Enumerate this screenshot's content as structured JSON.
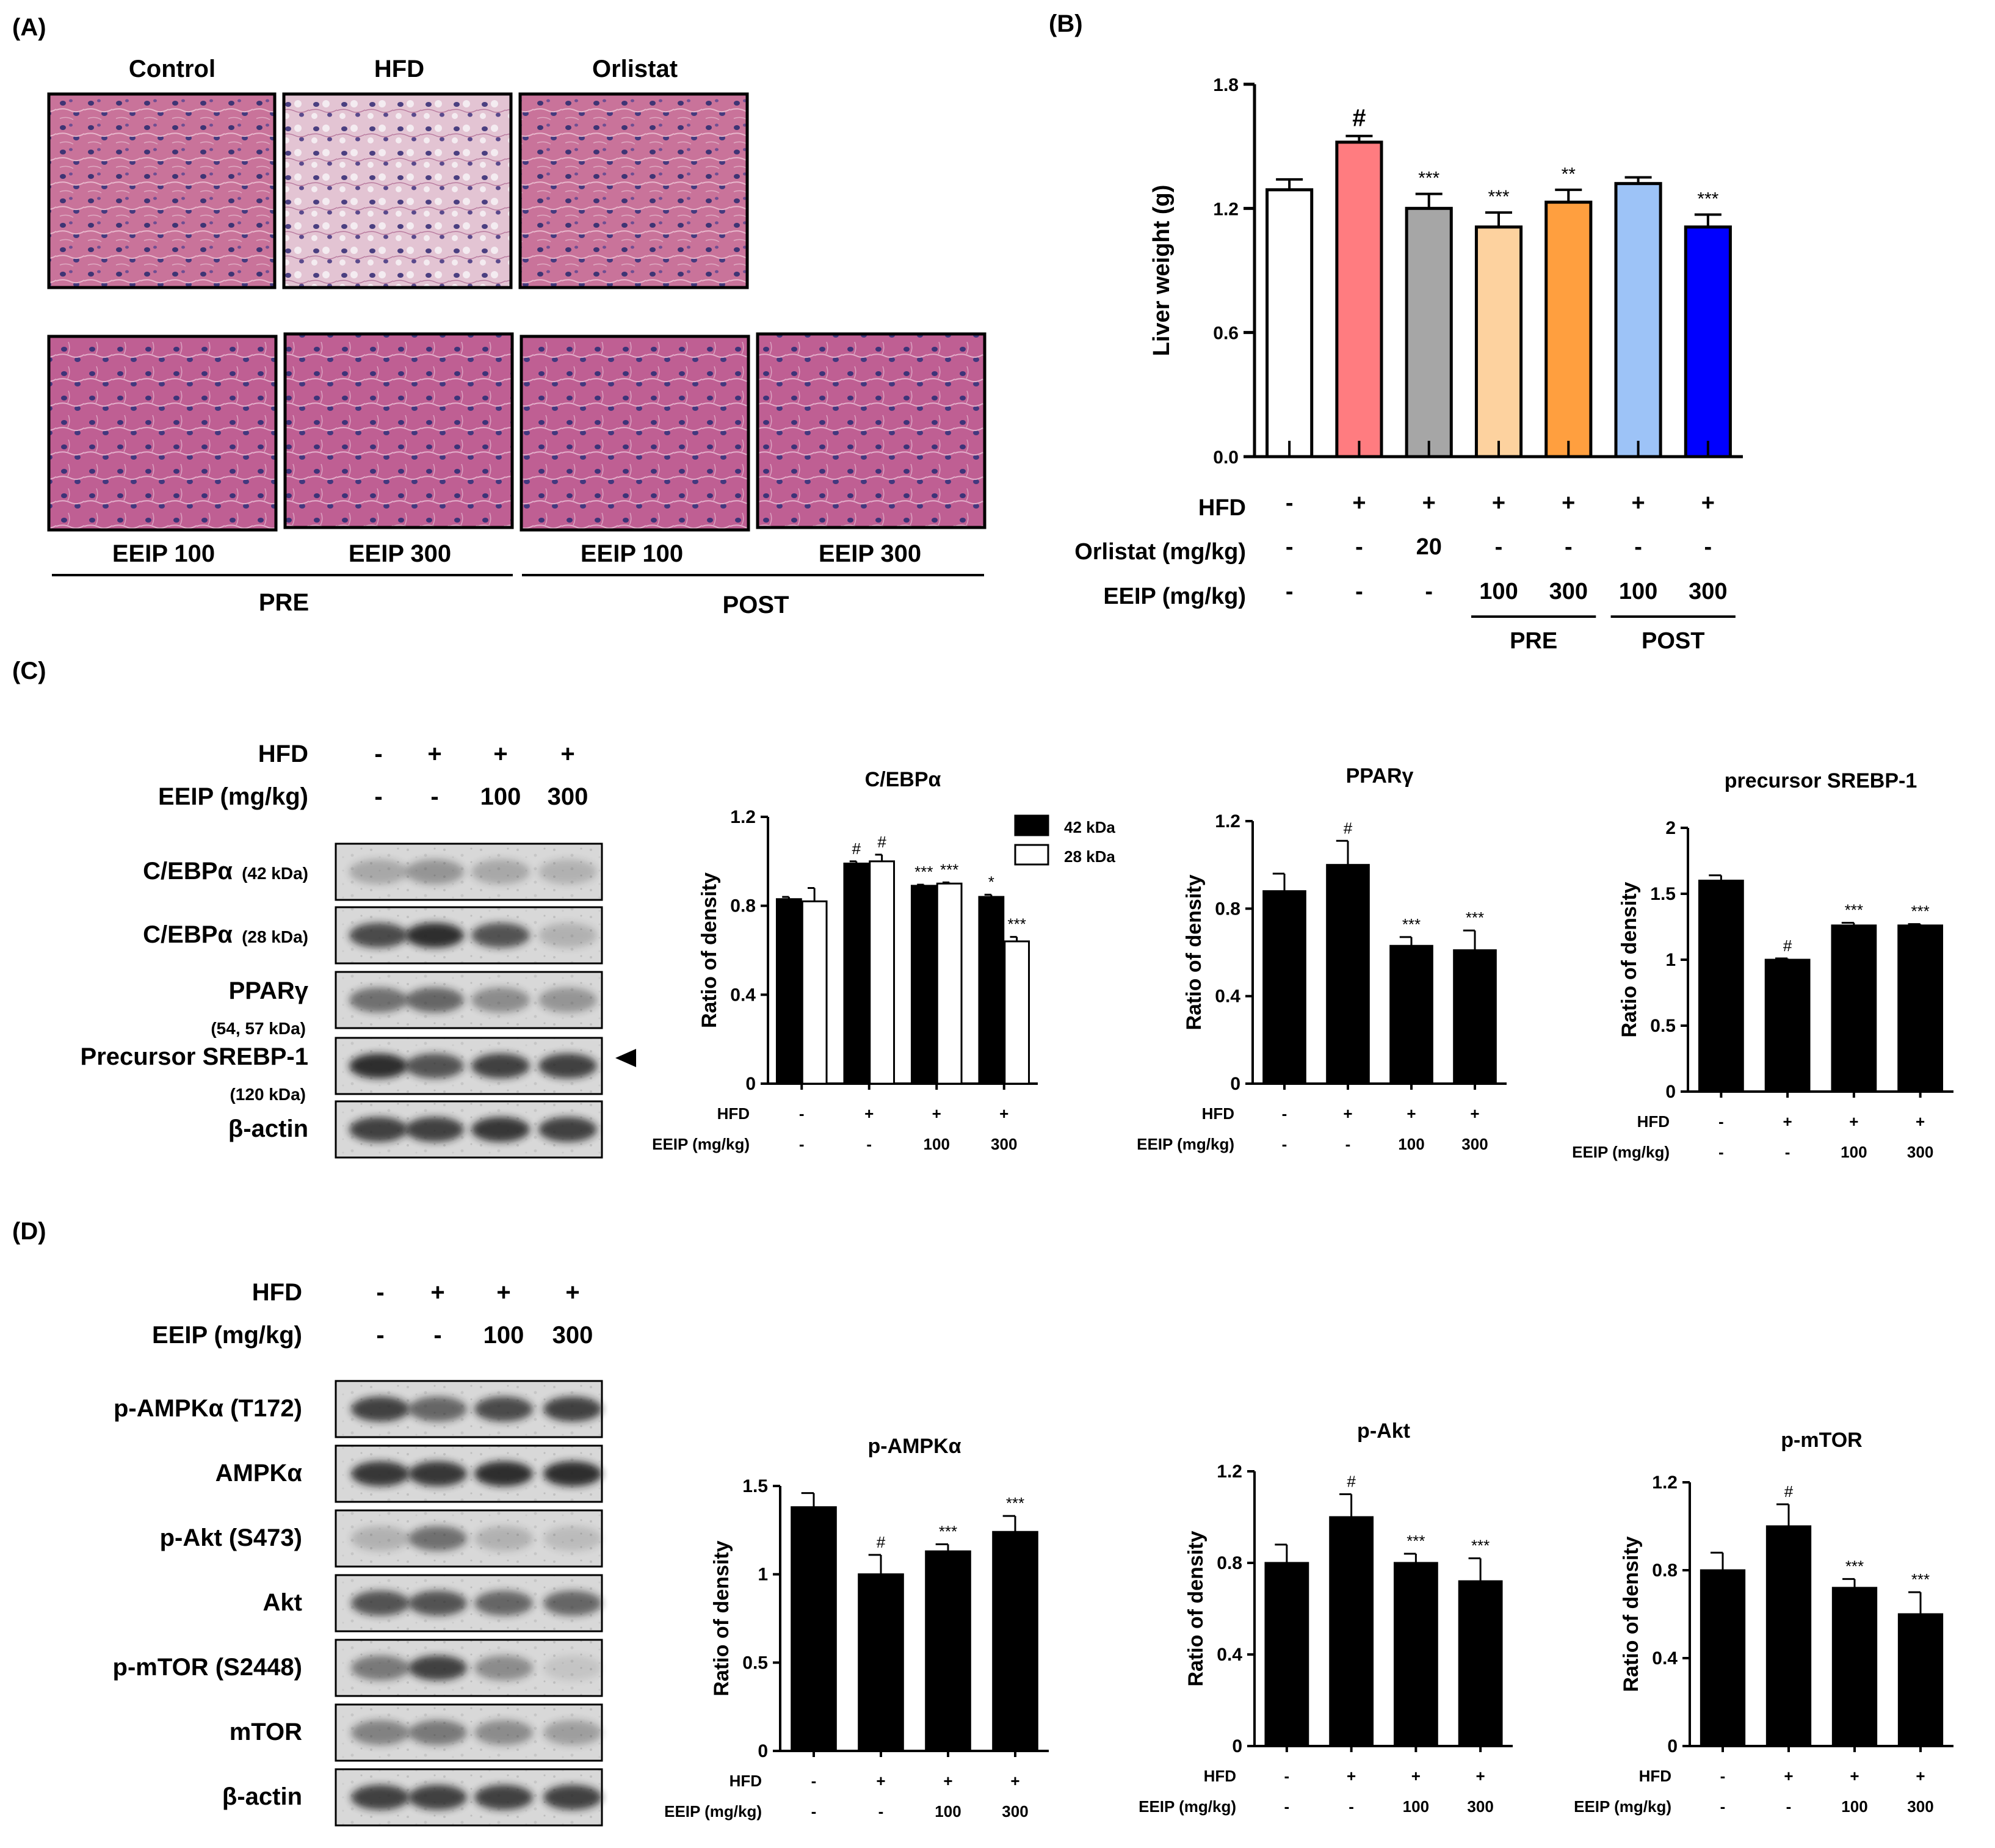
{
  "panels": {
    "A": {
      "label": "(A)",
      "top_titles": [
        "Control",
        "HFD",
        "Orlistat"
      ],
      "bottom_labels": [
        "EEIP 100",
        "EEIP 300",
        "EEIP 100",
        "EEIP 300"
      ],
      "groups": [
        "PRE",
        "POST"
      ]
    },
    "B": {
      "label": "(B)"
    },
    "C": {
      "label": "(C)"
    },
    "D": {
      "label": "(D)"
    }
  },
  "blot_c": {
    "hfd_label": "HFD",
    "eeip_label": "EEIP (mg/kg)",
    "hfd": [
      "-",
      "+",
      "+",
      "+"
    ],
    "eeip": [
      "-",
      "-",
      "100",
      "300"
    ],
    "rows": [
      {
        "name": "C/EBPα",
        "sub": "(42 kDa)"
      },
      {
        "name": "C/EBPα",
        "sub": "(28 kDa)"
      },
      {
        "name": "PPARγ",
        "sub": "(54, 57 kDa)"
      },
      {
        "name": "Precursor SREBP-1",
        "sub": "(120 kDa)"
      },
      {
        "name": "β-actin",
        "sub": ""
      }
    ]
  },
  "blot_d": {
    "hfd_label": "HFD",
    "eeip_label": "EEIP (mg/kg)",
    "hfd": [
      "-",
      "+",
      "+",
      "+"
    ],
    "eeip": [
      "-",
      "-",
      "100",
      "300"
    ],
    "rows": [
      {
        "name": "p-AMPKα (T172)"
      },
      {
        "name": "AMPKα"
      },
      {
        "name": "p-Akt (S473)"
      },
      {
        "name": "Akt"
      },
      {
        "name": "p-mTOR (S2448)"
      },
      {
        "name": "mTOR"
      },
      {
        "name": "β-actin"
      }
    ]
  },
  "chart_data": [
    {
      "id": "liver",
      "type": "bar",
      "ylabel": "Liver weight (g)",
      "ylim": [
        0,
        1.8
      ],
      "yticks": [
        "0.0",
        "0.6",
        "1.2",
        "1.8"
      ],
      "values": [
        1.29,
        1.52,
        1.2,
        1.11,
        1.23,
        1.32,
        1.11
      ],
      "errors": [
        0.05,
        0.03,
        0.07,
        0.07,
        0.06,
        0.03,
        0.06
      ],
      "sig": [
        "",
        "#",
        "***",
        "***",
        "**",
        "",
        "***"
      ],
      "colors": [
        "#ffffff",
        "#ff7c80",
        "#a6a6a6",
        "#fdd29f",
        "#ff9f3f",
        "#9dc3f7",
        "#0000ff"
      ],
      "rows": [
        {
          "label": "HFD",
          "values": [
            "-",
            "+",
            "+",
            "+",
            "+",
            "+",
            "+"
          ]
        },
        {
          "label": "Orlistat (mg/kg)",
          "values": [
            "-",
            "-",
            "20",
            "-",
            "-",
            "-",
            "-"
          ]
        },
        {
          "label": "EEIP (mg/kg)",
          "values": [
            "-",
            "-",
            "-",
            "100",
            "300",
            "100",
            "300"
          ]
        }
      ],
      "groups": [
        "PRE",
        "POST"
      ]
    },
    {
      "id": "cebpa",
      "type": "bar",
      "title": "C/EBPα",
      "ylabel": "Ratio of density",
      "ylim": [
        0,
        1.2
      ],
      "yticks": [
        "0",
        "0.4",
        "0.8",
        "1.2"
      ],
      "legend": [
        "42 kDa",
        "28 kDa"
      ],
      "series": [
        {
          "name": "42 kDa",
          "values": [
            0.83,
            0.99,
            0.89,
            0.84
          ],
          "errors": [
            0.01,
            0.01,
            0.005,
            0.01
          ],
          "sig": [
            "",
            "#",
            "***",
            "*"
          ]
        },
        {
          "name": "28 kDa",
          "values": [
            0.82,
            1.0,
            0.9,
            0.64
          ],
          "errors": [
            0.06,
            0.03,
            0.005,
            0.02
          ],
          "sig": [
            "",
            "#",
            "***",
            "***"
          ]
        }
      ],
      "hfd_label": "HFD",
      "eeip_label": "EEIP  (mg/kg)",
      "hfd": [
        "-",
        "+",
        "+",
        "+"
      ],
      "eeip": [
        "-",
        "-",
        "100",
        "300"
      ]
    },
    {
      "id": "pparg",
      "type": "bar",
      "title": "PPARγ",
      "ylabel": "Ratio of density",
      "ylim": [
        0,
        1.2
      ],
      "yticks": [
        "0",
        "0.4",
        "0.8",
        "1.2"
      ],
      "values": [
        0.88,
        1.0,
        0.63,
        0.61
      ],
      "errors": [
        0.08,
        0.11,
        0.04,
        0.09
      ],
      "sig": [
        "",
        "#",
        "***",
        "***"
      ],
      "hfd_label": "HFD",
      "eeip_label": "EEIP  (mg/kg)",
      "hfd": [
        "-",
        "+",
        "+",
        "+"
      ],
      "eeip": [
        "-",
        "-",
        "100",
        "300"
      ]
    },
    {
      "id": "srebp",
      "type": "bar",
      "title": "precursor SREBP-1",
      "ylabel": "Ratio of density",
      "ylim": [
        0,
        2
      ],
      "yticks": [
        "0",
        "0.5",
        "1",
        "1.5",
        "2"
      ],
      "values": [
        1.6,
        1.0,
        1.26,
        1.26
      ],
      "errors": [
        0.04,
        0.01,
        0.02,
        0.01
      ],
      "sig": [
        "",
        "#",
        "***",
        "***"
      ],
      "hfd_label": "HFD",
      "eeip_label": "EEIP  (mg/kg)",
      "hfd": [
        "-",
        "+",
        "+",
        "+"
      ],
      "eeip": [
        "-",
        "-",
        "100",
        "300"
      ]
    },
    {
      "id": "pampk",
      "type": "bar",
      "title": "p-AMPKα",
      "ylabel": "Ratio of density",
      "ylim": [
        0,
        1.5
      ],
      "yticks": [
        "0",
        "0.5",
        "1",
        "1.5"
      ],
      "values": [
        1.38,
        1.0,
        1.13,
        1.24
      ],
      "errors": [
        0.08,
        0.11,
        0.04,
        0.09
      ],
      "sig": [
        "",
        "#",
        "***",
        "***"
      ],
      "hfd_label": "HFD",
      "eeip_label": "EEIP  (mg/kg)",
      "hfd": [
        "-",
        "+",
        "+",
        "+"
      ],
      "eeip": [
        "-",
        "-",
        "100",
        "300"
      ]
    },
    {
      "id": "pakt",
      "type": "bar",
      "title": "p-Akt",
      "ylabel": "Ratio of density",
      "ylim": [
        0,
        1.2
      ],
      "yticks": [
        "0",
        "0.4",
        "0.8",
        "1.2"
      ],
      "values": [
        0.8,
        1.0,
        0.8,
        0.72
      ],
      "errors": [
        0.08,
        0.1,
        0.04,
        0.1
      ],
      "sig": [
        "",
        "#",
        "***",
        "***"
      ],
      "hfd_label": "HFD",
      "eeip_label": "EEIP  (mg/kg)",
      "hfd": [
        "-",
        "+",
        "+",
        "+"
      ],
      "eeip": [
        "-",
        "-",
        "100",
        "300"
      ]
    },
    {
      "id": "pmtor",
      "type": "bar",
      "title": "p-mTOR",
      "ylabel": "Ratio of density",
      "ylim": [
        0,
        1.2
      ],
      "yticks": [
        "0",
        "0.4",
        "0.8",
        "1.2"
      ],
      "values": [
        0.8,
        1.0,
        0.72,
        0.6
      ],
      "errors": [
        0.08,
        0.1,
        0.04,
        0.1
      ],
      "sig": [
        "",
        "#",
        "***",
        "***"
      ],
      "hfd_label": "HFD",
      "eeip_label": "EEIP  (mg/kg)",
      "hfd": [
        "-",
        "+",
        "+",
        "+"
      ],
      "eeip": [
        "-",
        "-",
        "100",
        "300"
      ]
    }
  ]
}
